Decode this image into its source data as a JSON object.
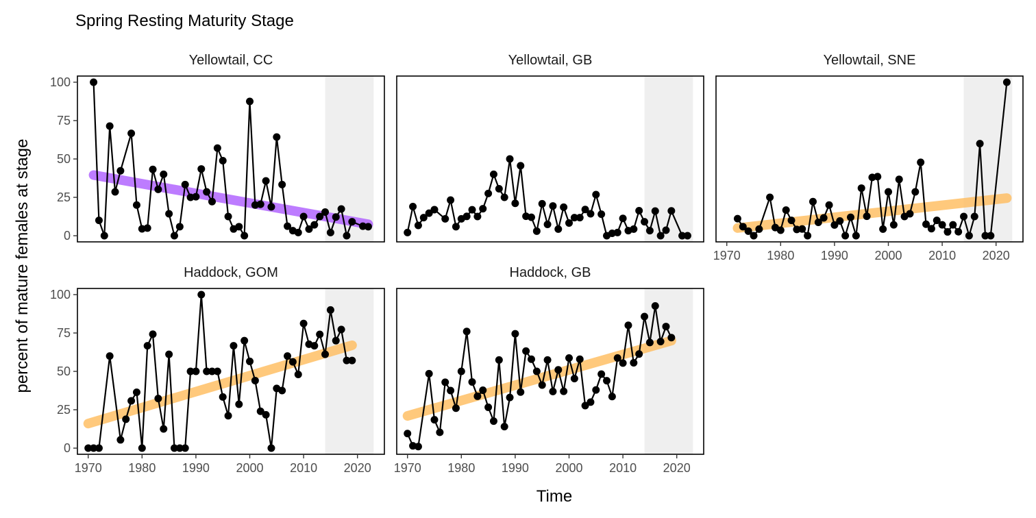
{
  "chart_data": {
    "type": "line",
    "title": "Spring Resting Maturity Stage",
    "xlabel": "Time",
    "ylabel": "percent of mature females at stage",
    "xlim": [
      1968,
      2025
    ],
    "ylim": [
      -4,
      104
    ],
    "x_ticks": [
      1970,
      1980,
      1990,
      2000,
      2010,
      2020
    ],
    "y_ticks": [
      0,
      25,
      50,
      75,
      100
    ],
    "shaded_period": [
      2014,
      2023
    ],
    "colors": {
      "points": "#000000",
      "line": "#000000",
      "trend_decreasing": "#b266ff",
      "trend_increasing": "#ffc066",
      "shade": "#efefef"
    },
    "panels": [
      {
        "label": "Yellowtail, CC",
        "x": [
          1971,
          1972,
          1973,
          1974,
          1975,
          1976,
          1978,
          1979,
          1980,
          1981,
          1982,
          1983,
          1984,
          1985,
          1986,
          1987,
          1988,
          1989,
          1990,
          1991,
          1992,
          1993,
          1994,
          1995,
          1996,
          1997,
          1998,
          1999,
          2000,
          2001,
          2002,
          2003,
          2004,
          2005,
          2006,
          2007,
          2008,
          2009,
          2010,
          2011,
          2012,
          2013,
          2014,
          2015,
          2016,
          2017,
          2018,
          2019,
          2021,
          2022
        ],
        "y": [
          100,
          10,
          0,
          71.4,
          28.6,
          42.3,
          66.7,
          20,
          4.5,
          5,
          43.2,
          30.2,
          40,
          14.3,
          0,
          5.9,
          33.3,
          25,
          25.4,
          43.5,
          28.6,
          22.2,
          57.1,
          48.9,
          12.5,
          4.4,
          5.9,
          0,
          87.5,
          20,
          20.5,
          35.7,
          18.8,
          64.3,
          33.3,
          6.2,
          3.3,
          2.1,
          12.5,
          4.3,
          7.1,
          12.5,
          15.4,
          2.1,
          12.2,
          17.4,
          0,
          9.1,
          6.2,
          5.9
        ],
        "trend": {
          "x": [
            1971,
            2022
          ],
          "y": [
            39.5,
            7.5
          ],
          "direction": "decreasing"
        }
      },
      {
        "label": "Yellowtail, GB",
        "x": [
          1970,
          1971,
          1972,
          1973,
          1974,
          1975,
          1977,
          1978,
          1979,
          1980,
          1981,
          1982,
          1983,
          1984,
          1985,
          1986,
          1987,
          1988,
          1989,
          1990,
          1991,
          1992,
          1993,
          1994,
          1995,
          1996,
          1997,
          1998,
          1999,
          2000,
          2001,
          2002,
          2003,
          2004,
          2005,
          2006,
          2007,
          2008,
          2009,
          2010,
          2011,
          2012,
          2013,
          2014,
          2015,
          2016,
          2017,
          2018,
          2019,
          2021,
          2022
        ],
        "y": [
          2.1,
          19,
          6.7,
          11.8,
          14.7,
          17,
          11,
          23.2,
          5.9,
          11,
          12.6,
          16.9,
          12.5,
          17.6,
          27.5,
          40,
          30.6,
          25,
          50,
          21.1,
          45.6,
          12.7,
          12,
          3,
          20.8,
          7.4,
          19.4,
          4.3,
          18.6,
          8.3,
          11.8,
          11.8,
          17.1,
          14.3,
          26.8,
          14,
          0,
          1.6,
          2.1,
          11.3,
          3.3,
          4.3,
          16.3,
          9.1,
          3.3,
          16.1,
          0,
          3.6,
          16.2,
          0,
          0
        ],
        "trend": null
      },
      {
        "label": "Yellowtail, SNE",
        "x": [
          1972,
          1973,
          1974,
          1975,
          1976,
          1978,
          1979,
          1980,
          1981,
          1982,
          1983,
          1984,
          1985,
          1986,
          1987,
          1988,
          1989,
          1990,
          1991,
          1992,
          1993,
          1994,
          1995,
          1996,
          1997,
          1998,
          1999,
          2000,
          2001,
          2002,
          2003,
          2004,
          2005,
          2006,
          2007,
          2008,
          2009,
          2010,
          2011,
          2012,
          2013,
          2014,
          2015,
          2016,
          2017,
          2018,
          2019,
          2022
        ],
        "y": [
          11.1,
          5.9,
          3,
          0,
          4.3,
          25,
          5.3,
          3.6,
          16.7,
          10,
          4.1,
          4.4,
          0,
          22.2,
          8.7,
          11.6,
          20,
          7,
          9.6,
          0,
          12,
          0,
          31,
          12.7,
          38,
          38.5,
          4.3,
          28.6,
          7.1,
          36.7,
          12.5,
          14.3,
          28.6,
          47.8,
          7.5,
          4.6,
          10,
          7.1,
          2.5,
          7.1,
          2.6,
          12.5,
          0,
          12.5,
          60,
          0,
          0,
          100
        ],
        "trend": {
          "x": [
            1972,
            2022
          ],
          "y": [
            5,
            24.5
          ],
          "direction": "increasing"
        }
      },
      {
        "label": "Haddock, GOM",
        "x": [
          1970,
          1971,
          1972,
          1974,
          1976,
          1977,
          1978,
          1979,
          1980,
          1981,
          1982,
          1983,
          1984,
          1985,
          1986,
          1987,
          1988,
          1989,
          1990,
          1991,
          1992,
          1993,
          1994,
          1995,
          1996,
          1997,
          1998,
          1999,
          2000,
          2001,
          2002,
          2003,
          2004,
          2005,
          2006,
          2007,
          2008,
          2009,
          2010,
          2011,
          2012,
          2013,
          2014,
          2015,
          2016,
          2017,
          2018,
          2019
        ],
        "y": [
          0,
          0,
          0,
          60,
          5.4,
          18.8,
          30.8,
          36.4,
          0,
          66.7,
          74.2,
          32.3,
          12.5,
          61.1,
          0,
          0,
          0,
          50,
          50,
          100,
          50,
          50,
          50,
          33.3,
          21.1,
          66.7,
          28.6,
          70,
          56.5,
          44,
          24,
          21.7,
          0,
          38.9,
          37.5,
          60,
          56.2,
          48,
          81.2,
          67.7,
          66.7,
          74.1,
          61.1,
          90,
          70,
          77.3,
          57.1,
          57.1
        ],
        "trend": {
          "x": [
            1970,
            2019
          ],
          "y": [
            16,
            67
          ],
          "direction": "increasing"
        }
      },
      {
        "label": "Haddock, GB",
        "x": [
          1970,
          1971,
          1972,
          1974,
          1975,
          1976,
          1977,
          1978,
          1979,
          1980,
          1981,
          1982,
          1983,
          1984,
          1985,
          1986,
          1987,
          1988,
          1989,
          1990,
          1991,
          1992,
          1993,
          1994,
          1995,
          1996,
          1997,
          1998,
          1999,
          2000,
          2001,
          2002,
          2003,
          2004,
          2005,
          2006,
          2007,
          2008,
          2009,
          2010,
          2011,
          2012,
          2013,
          2014,
          2015,
          2016,
          2017,
          2018,
          2019
        ],
        "y": [
          9.5,
          1.5,
          1,
          48.5,
          18.5,
          10.3,
          42.9,
          37.5,
          26,
          50,
          76,
          43.1,
          33.8,
          37.7,
          26.6,
          17.6,
          57.4,
          14,
          33,
          74.5,
          36.5,
          63.2,
          57.9,
          50,
          41.1,
          57.4,
          36.9,
          51,
          37,
          58.7,
          45.3,
          57.9,
          27.7,
          30,
          37.9,
          48.2,
          43.9,
          33.6,
          58.7,
          55.4,
          80,
          55.6,
          61.3,
          85.7,
          68.8,
          92.6,
          69.4,
          79.2,
          72
        ],
        "trend": {
          "x": [
            1970,
            2019
          ],
          "y": [
            21,
            70
          ],
          "direction": "increasing"
        }
      }
    ]
  }
}
